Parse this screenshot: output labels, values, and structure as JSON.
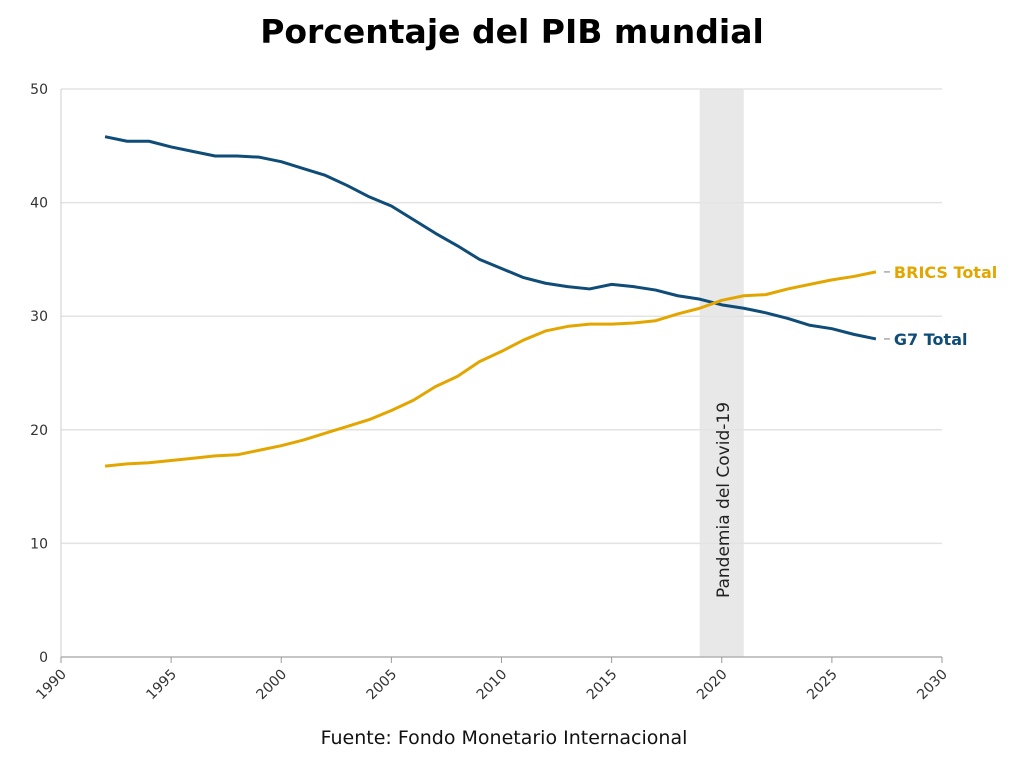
{
  "chart_data": {
    "type": "line",
    "title": "Porcentaje del PIB mundial",
    "source": "Fuente: Fondo Monetario Internacional",
    "xlim": [
      1990,
      2030
    ],
    "ylim": [
      0,
      50
    ],
    "xticks": [
      1990,
      1995,
      2000,
      2005,
      2010,
      2015,
      2020,
      2025,
      2030
    ],
    "yticks": [
      0,
      10,
      20,
      30,
      40,
      50
    ],
    "grid": true,
    "annotation": {
      "label": "Pandemia del Covid-19",
      "x_start": 2019,
      "x_end": 2021,
      "color": "#e8e8e8"
    },
    "x": [
      1992,
      1993,
      1994,
      1995,
      1996,
      1997,
      1998,
      1999,
      2000,
      2001,
      2002,
      2003,
      2004,
      2005,
      2006,
      2007,
      2008,
      2009,
      2010,
      2011,
      2012,
      2013,
      2014,
      2015,
      2016,
      2017,
      2018,
      2019,
      2020,
      2021,
      2022,
      2023,
      2024,
      2025,
      2026,
      2027
    ],
    "series": [
      {
        "name": "G7 Total",
        "color": "#0f4c78",
        "values": [
          45.8,
          45.4,
          45.4,
          44.9,
          44.5,
          44.1,
          44.1,
          44.0,
          43.6,
          43.0,
          42.4,
          41.5,
          40.5,
          39.7,
          38.5,
          37.3,
          36.2,
          35.0,
          34.2,
          33.4,
          32.9,
          32.6,
          32.4,
          32.8,
          32.6,
          32.3,
          31.8,
          31.5,
          31.0,
          30.7,
          30.3,
          29.8,
          29.2,
          28.9,
          28.4,
          28.0
        ]
      },
      {
        "name": "BRICS Total",
        "color": "#e3a600",
        "values": [
          16.8,
          17.0,
          17.1,
          17.3,
          17.5,
          17.7,
          17.8,
          18.2,
          18.6,
          19.1,
          19.7,
          20.3,
          20.9,
          21.7,
          22.6,
          23.8,
          24.7,
          26.0,
          26.9,
          27.9,
          28.7,
          29.1,
          29.3,
          29.3,
          29.4,
          29.6,
          30.2,
          30.7,
          31.4,
          31.8,
          31.9,
          32.4,
          32.8,
          33.2,
          33.5,
          33.9
        ]
      }
    ]
  }
}
